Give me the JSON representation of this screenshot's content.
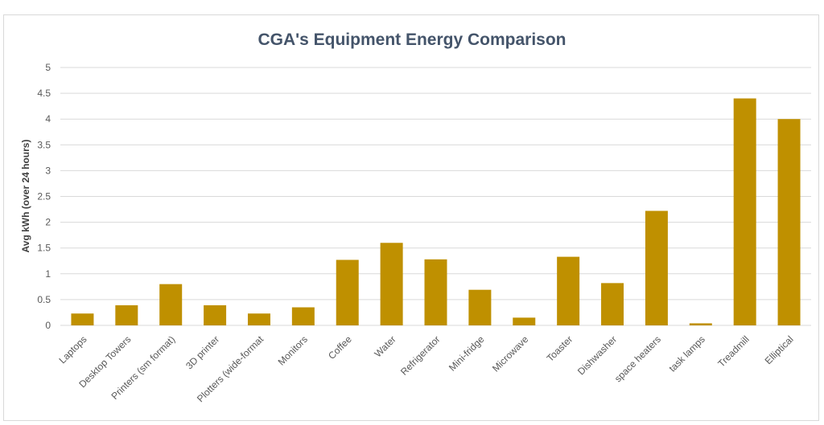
{
  "chart_data": {
    "type": "bar",
    "title": "CGA's Equipment Energy Comparison",
    "xlabel": "",
    "ylabel": "Avg kWh (over 24 hours)",
    "categories": [
      "Laptops",
      "Desktop Towers",
      "Printers (sm format)",
      "3D printer",
      "Plotters (wide-format",
      "Monitors",
      "Coffee",
      "Water",
      "Refrigerator",
      "Mini-fridge",
      "Microwave",
      "Toaster",
      "Dishwasher",
      "space heaters",
      "task lamps",
      "Treadmill",
      "Elliptical"
    ],
    "values": [
      0.23,
      0.39,
      0.8,
      0.39,
      0.23,
      0.35,
      1.27,
      1.6,
      1.28,
      0.69,
      0.15,
      1.33,
      0.82,
      2.22,
      0.04,
      4.4,
      4.0
    ],
    "ylim": [
      0,
      5
    ],
    "yticks": [
      "0",
      "0.5",
      "1",
      "1.5",
      "2",
      "2.5",
      "3",
      "3.5",
      "4",
      "4.5",
      "5"
    ],
    "grid": true,
    "legend": "none",
    "bar_color": "#bf9000",
    "grid_color": "#d9d9d9"
  }
}
